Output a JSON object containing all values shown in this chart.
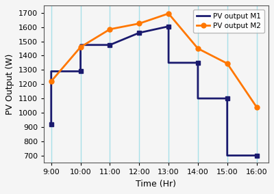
{
  "m1_step_x": [
    9,
    9,
    10,
    10,
    11,
    12,
    13,
    13,
    14,
    14,
    15,
    15,
    16
  ],
  "m1_step_y": [
    920,
    1290,
    1290,
    1475,
    1475,
    1560,
    1605,
    1350,
    1350,
    1100,
    1100,
    700,
    700
  ],
  "m1_marker_x": [
    9,
    10,
    11,
    12,
    13,
    14,
    15,
    16
  ],
  "m1_marker_y": [
    920,
    1290,
    1475,
    1560,
    1605,
    1350,
    1100,
    700
  ],
  "m2_x": [
    9,
    10,
    11,
    12,
    13,
    14,
    15,
    16
  ],
  "m2_y": [
    1220,
    1460,
    1585,
    1625,
    1695,
    1450,
    1345,
    1040
  ],
  "m1_color": "#1a1a6e",
  "m2_color": "#FF7700",
  "xlabel": "Time (Hr)",
  "ylabel": "PV Output (W)",
  "label_m1": "PV output M1",
  "label_m2": "PV output M2",
  "ylim": [
    650,
    1750
  ],
  "xlim": [
    8.75,
    16.4
  ],
  "xticks": [
    9,
    10,
    11,
    12,
    13,
    14,
    15,
    16
  ],
  "yticks": [
    700,
    800,
    900,
    1000,
    1100,
    1200,
    1300,
    1400,
    1500,
    1600,
    1700
  ],
  "grid_color": "#a8e0e8",
  "bg_color": "#f5f5f5",
  "axis_fontsize": 9,
  "tick_fontsize": 8,
  "linewidth": 2.0
}
